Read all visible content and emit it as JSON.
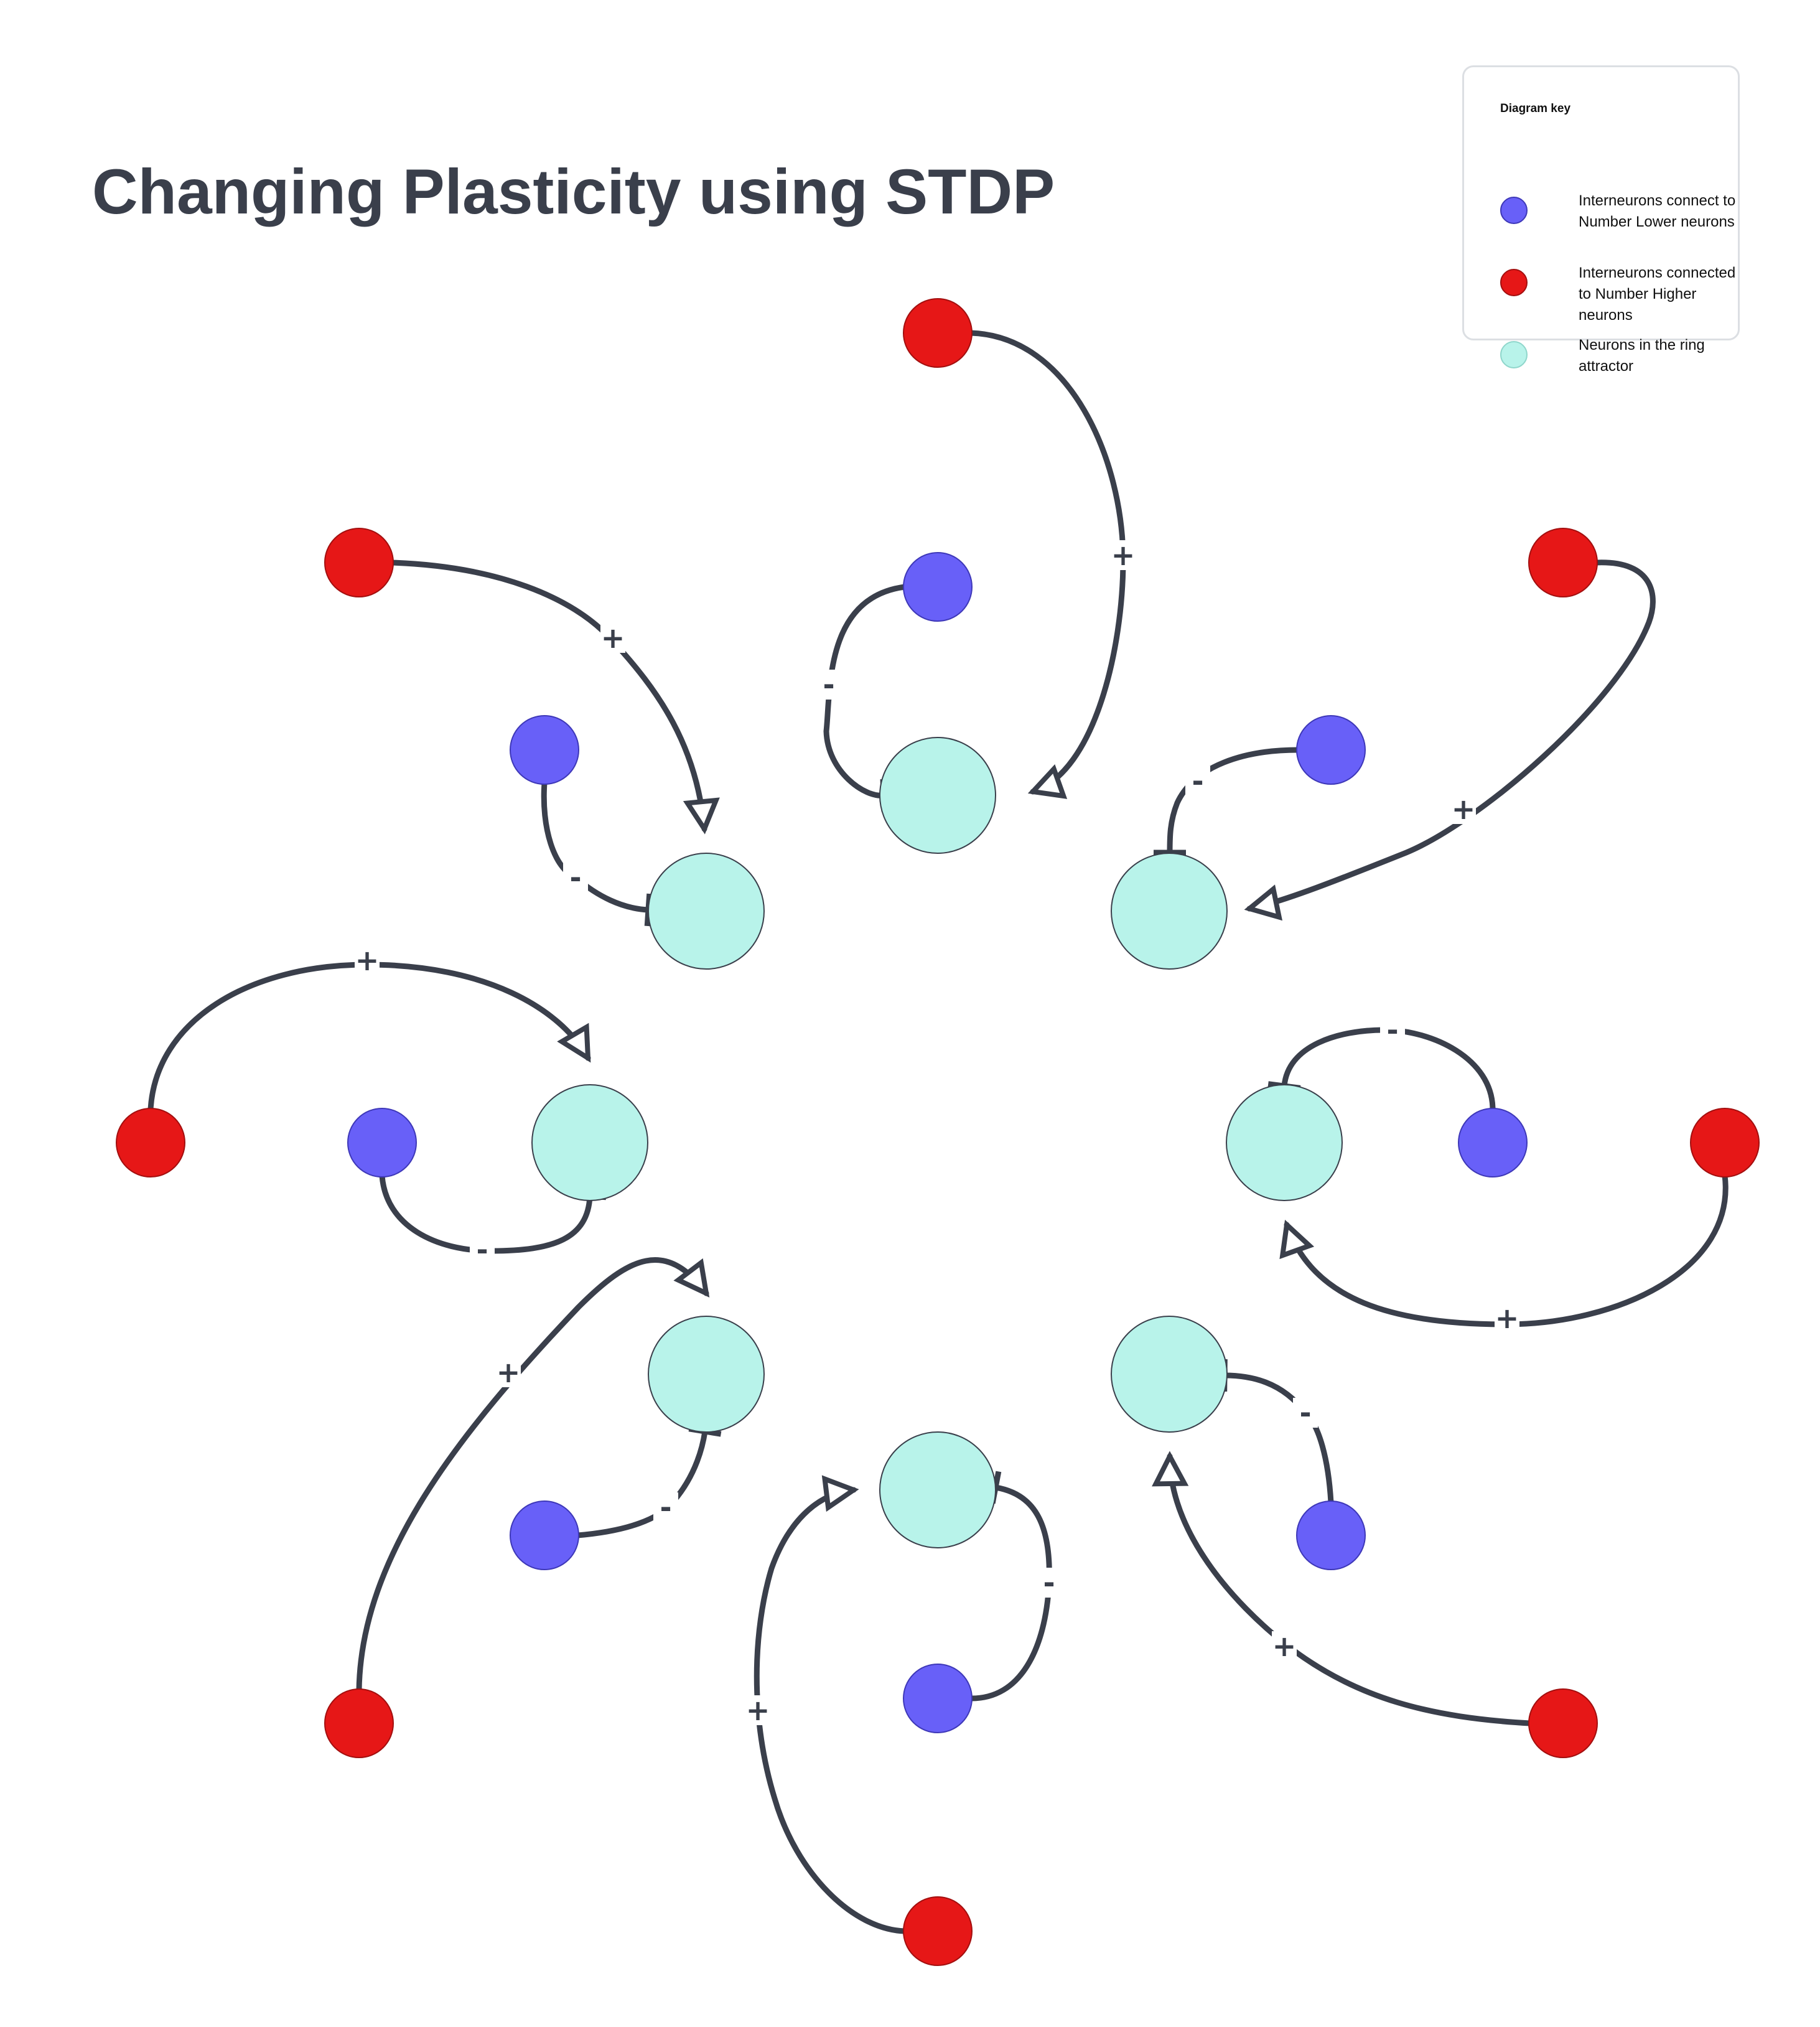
{
  "title": "Changing Plasticity using STDP",
  "legend": {
    "heading": "Diagram key",
    "items": [
      {
        "label": "Interneurons connect to Number Lower neurons",
        "color": "#6860f8"
      },
      {
        "label": "Interneurons connected to Number Higher neurons",
        "color": "#e61717"
      },
      {
        "label": "Neurons in the ring attractor",
        "color": "#b8f3ea"
      }
    ]
  },
  "colors": {
    "edge": "#3a3f4b",
    "ring_neuron": "#b8f3ea",
    "lower_interneuron": "#6860f8",
    "higher_interneuron": "#e61717"
  },
  "edge_labels": {
    "excitatory": "+",
    "inhibitory": "-"
  },
  "connection_types": {
    "excitatory": "arrowhead",
    "inhibitory": "bar"
  },
  "ring_size": 8
}
